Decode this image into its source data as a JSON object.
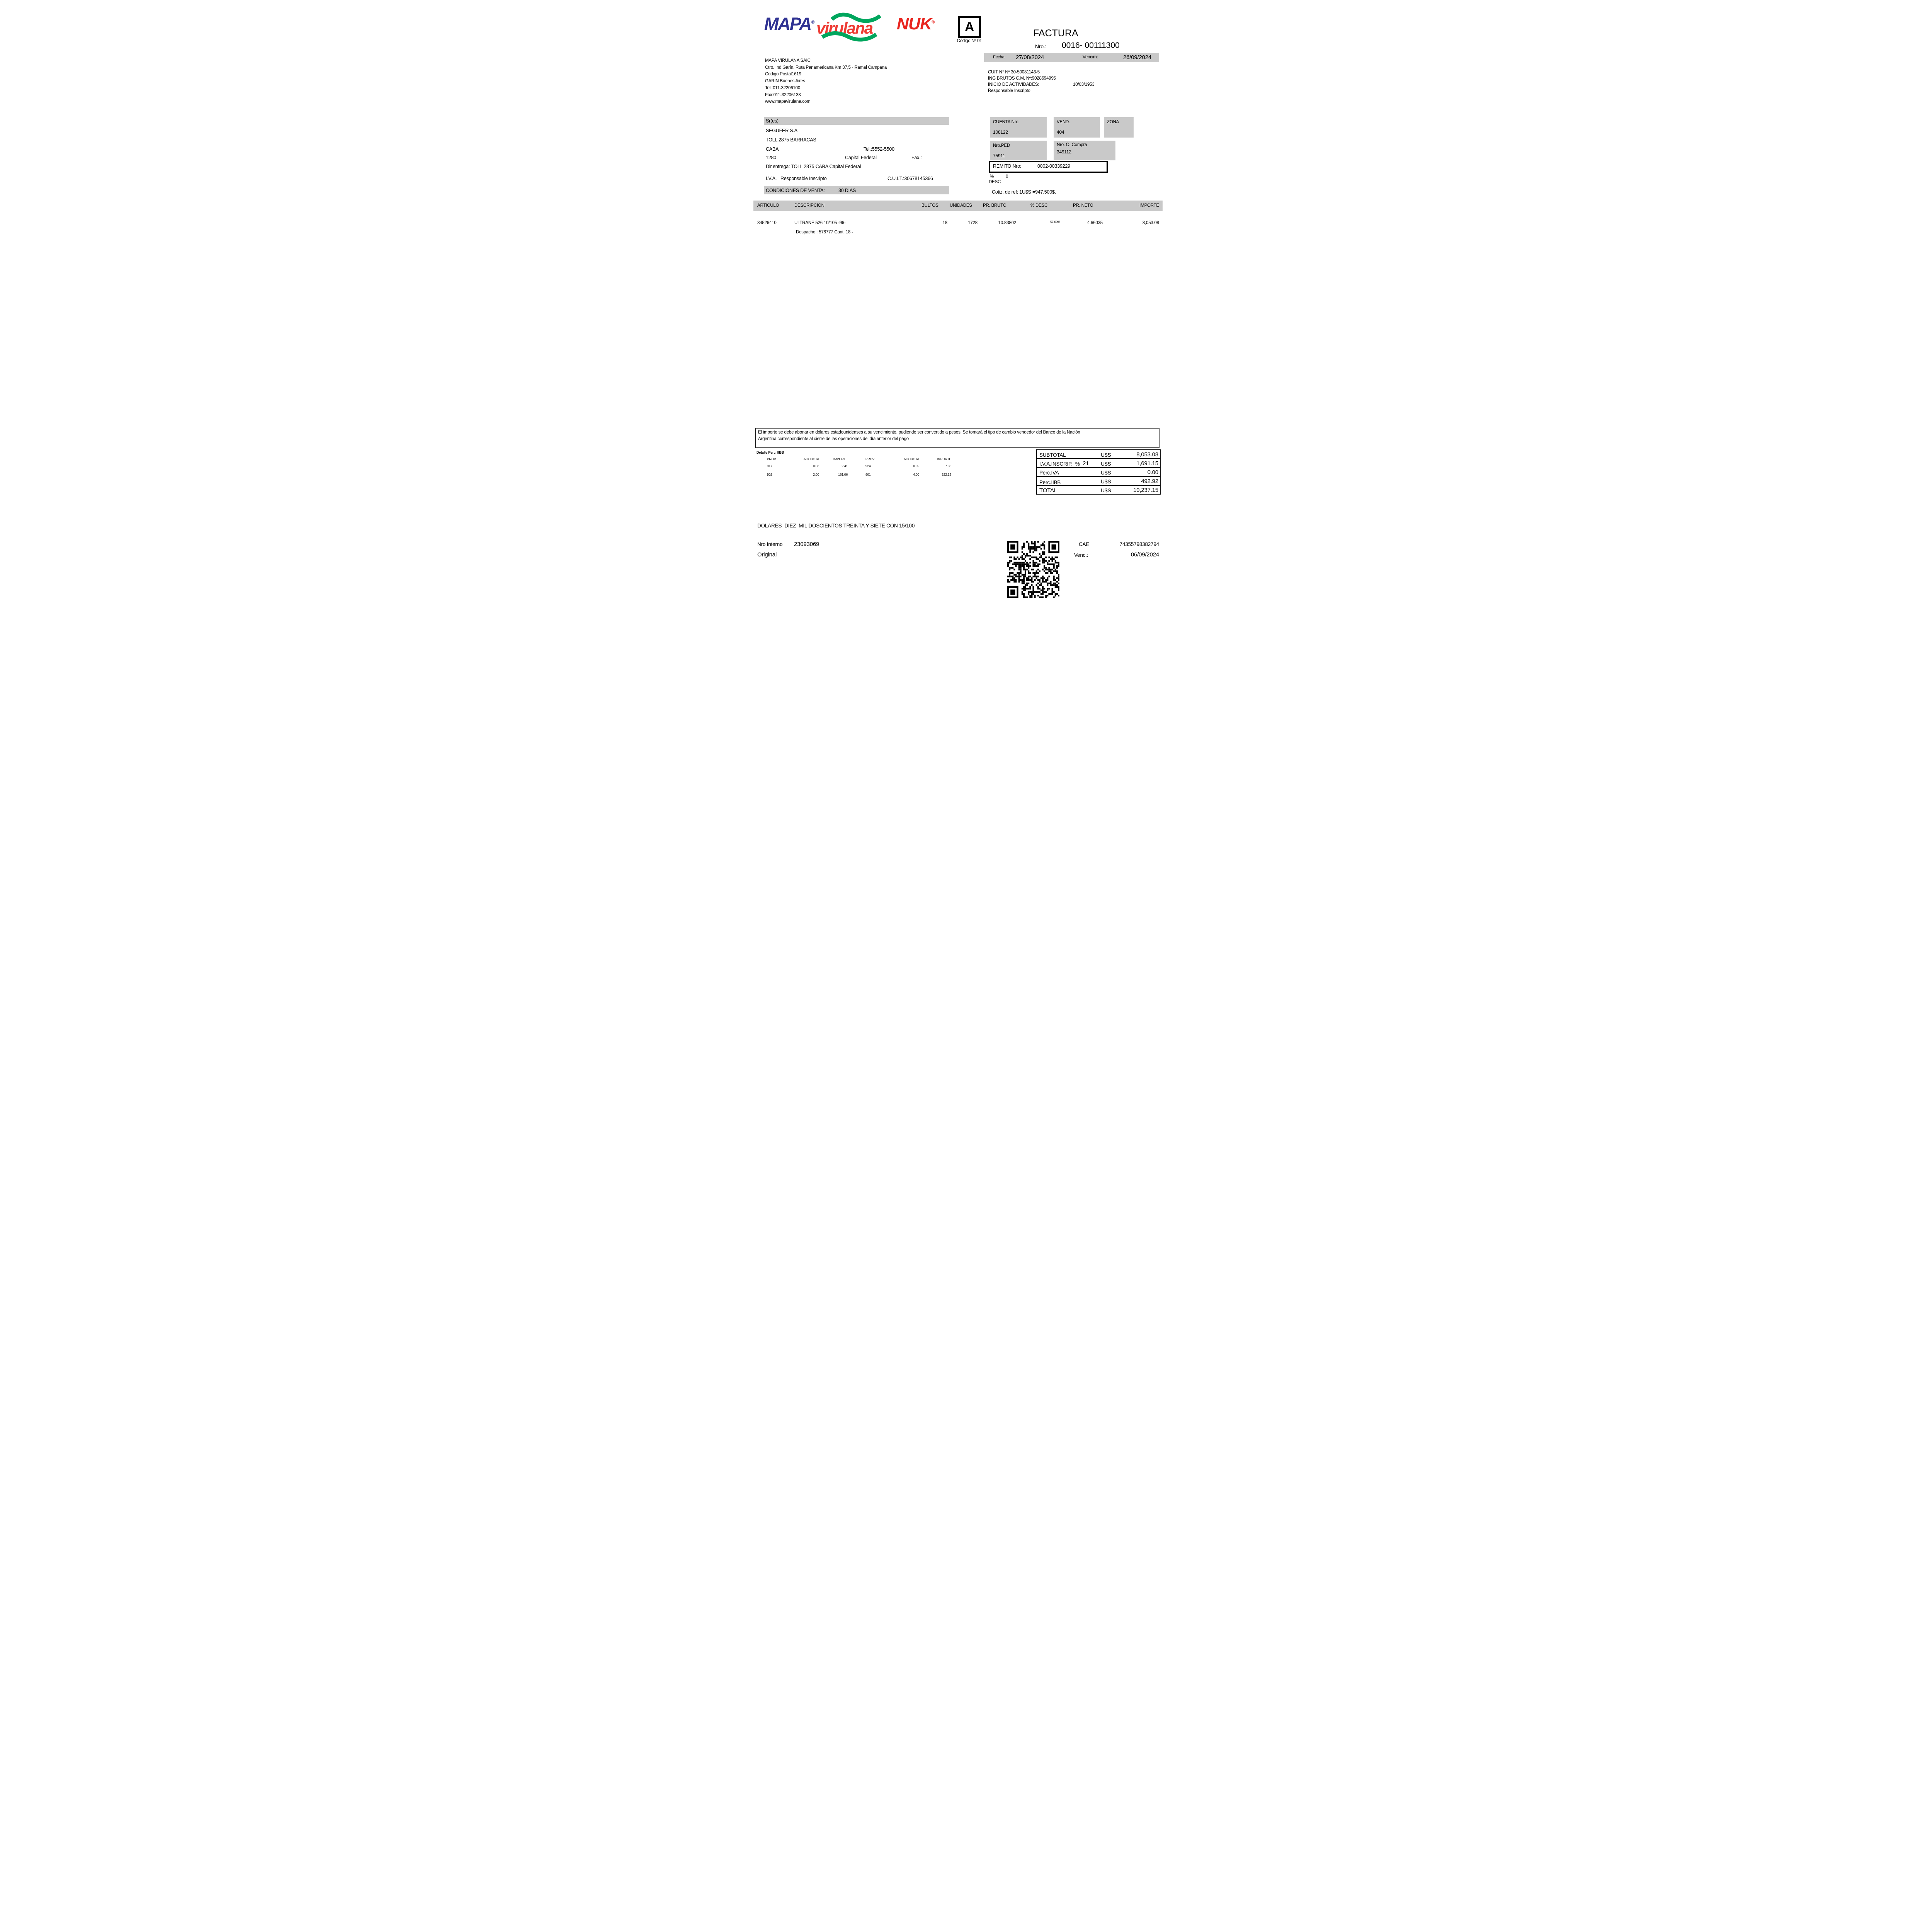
{
  "colors": {
    "gray": "#c9c9c9",
    "mapa_blue": "#2e3192",
    "brand_red": "#ee3b33",
    "brand_green": "#00a65d",
    "nuk_red": "#e8251f"
  },
  "brand": {
    "mapa": "MAPA",
    "virulana": "virulana",
    "nuk": "NUK",
    "reg": "®"
  },
  "doc": {
    "letter": "A",
    "codigo": "Código Nº 01",
    "title": "FACTURA",
    "nro_label": "Nro.:",
    "nro_value": "0016- 00111300",
    "fecha_label": "Fecha:",
    "fecha_value": "27/08/2024",
    "vencim_label": "Vencim:",
    "vencim_value": "26/09/2024"
  },
  "company": {
    "name": "MAPA VIRULANA SAIC",
    "address": "Ctro. Ind Garín. Ruta Panamericana Km 37,5 - Ramal Campana",
    "postal": "Codigo Postal1619",
    "city": "GARIN Buenos Aires",
    "tel": "Tel.:011-32206100",
    "fax": "Fax:011-32206138",
    "web": "www.mapavirulana.com",
    "cuit": "CUIT N° Nº 30-50081143-5",
    "ing_brutos": "ING BRUTOS C.M. Nº:9028694995",
    "inicio_label": "INICIO DE ACTIVIDADES:",
    "inicio_value": "10/03/1953",
    "resp": "Responsable Inscripto"
  },
  "customer": {
    "sres_label": "Sr(es)",
    "name": "SEGUFER S.A",
    "address": "TOLL 2875 BARRACAS",
    "city": "CABA",
    "tel": "Tel.:5552-5500",
    "cp": "1280",
    "prov": "Capital Federal",
    "fax_label": "Fax.:",
    "dir_entrega": "Dir.entrega: TOLL 2875 CABA Capital Federal",
    "iva_label": "I.V.A.",
    "iva_value": "Responsable Inscripto",
    "cuit": "C.U.I.T.:30678145366",
    "cond_label": "CONDICIONES DE VENTA:",
    "cond_value": "30 DIAS"
  },
  "refs": {
    "cuenta_label": "CUENTA Nro.",
    "cuenta_value": "108122",
    "vend_label": "VEND.",
    "vend_value": "404",
    "zona_label": "ZONA",
    "ped_label": "Nro.PED",
    "ped_value": "75911",
    "ocompra_label": "Nro. O. Compra",
    "ocompra_value": "349112",
    "remito_label": "REMITO Nro:",
    "remito_value": "0002-00339229",
    "pct_label": "%",
    "pct_value": "0",
    "desc_label": "DESC",
    "cotiz": "Cotiz. de ref: 1U$S =947.500$."
  },
  "items": {
    "headers": {
      "articulo": "ARTICULO",
      "descripcion": "DESCRIPCION",
      "bultos": "BULTOS",
      "unidades": "UNIDADES",
      "pr_bruto": "PR. BRUTO",
      "pct_desc": "% DESC",
      "pr_neto": "PR. NETO",
      "importe": "IMPORTE"
    },
    "row": {
      "articulo": "34526410",
      "descripcion": "ULTRANE 526 10/105 -96-",
      "bultos": "18",
      "unidades": "1728",
      "pr_bruto": "10.83802",
      "pct_desc": "57.00%",
      "pr_neto": "4.66035",
      "importe": "8,053.08",
      "detalle": "Despacho : 578777 Cant: 18 -"
    }
  },
  "note": {
    "line1": "El importe se debe abonar en dólares estadounidenses a su vencimiento, pudiendo ser convertido a pesos. Se tomará el tipo de cambio vendedor del Banco de la Nación",
    "line2": "Argentina correspondiente al cierre de las operaciones del día anterior del pago"
  },
  "perc_iibb": {
    "title": "Detalle Perc. IIBB",
    "headers": [
      "PROV",
      "ALICUOTA",
      "IMPORTE",
      "PROV",
      "ALICUOTA",
      "IMPORTE"
    ],
    "rows": [
      [
        "917",
        "0.03",
        "2.41",
        "924",
        "0.09",
        "7.33"
      ],
      [
        "902",
        "2.00",
        "161.06",
        "901",
        "4.00",
        "322.12"
      ]
    ]
  },
  "totals": {
    "rows": [
      {
        "label": "SUBTOTAL",
        "currency": "U$S",
        "value": "8,053.08"
      },
      {
        "label": "I.V.A.INSCRIP.  %",
        "rate": "21",
        "currency": "U$S",
        "value": "1,691.15"
      },
      {
        "label": "Perc.IVA",
        "currency": "U$S",
        "value": "0.00"
      },
      {
        "label": "Perc.IIBB",
        "currency": "U$S",
        "value": "492.92"
      },
      {
        "label": "TOTAL",
        "currency": "U$S",
        "value": "10,237.15"
      }
    ]
  },
  "footer": {
    "amount_words": "DOLARES  DIEZ  MIL DOSCIENTOS TREINTA Y SIETE CON 15/100",
    "nro_interno_label": "Nro Interno",
    "nro_interno_value": "23093069",
    "original": "Original",
    "cae_label": "CAE",
    "cae_value": "74355798382794",
    "cae_venc_label": "Venc.:",
    "cae_venc_value": "06/09/2024"
  }
}
